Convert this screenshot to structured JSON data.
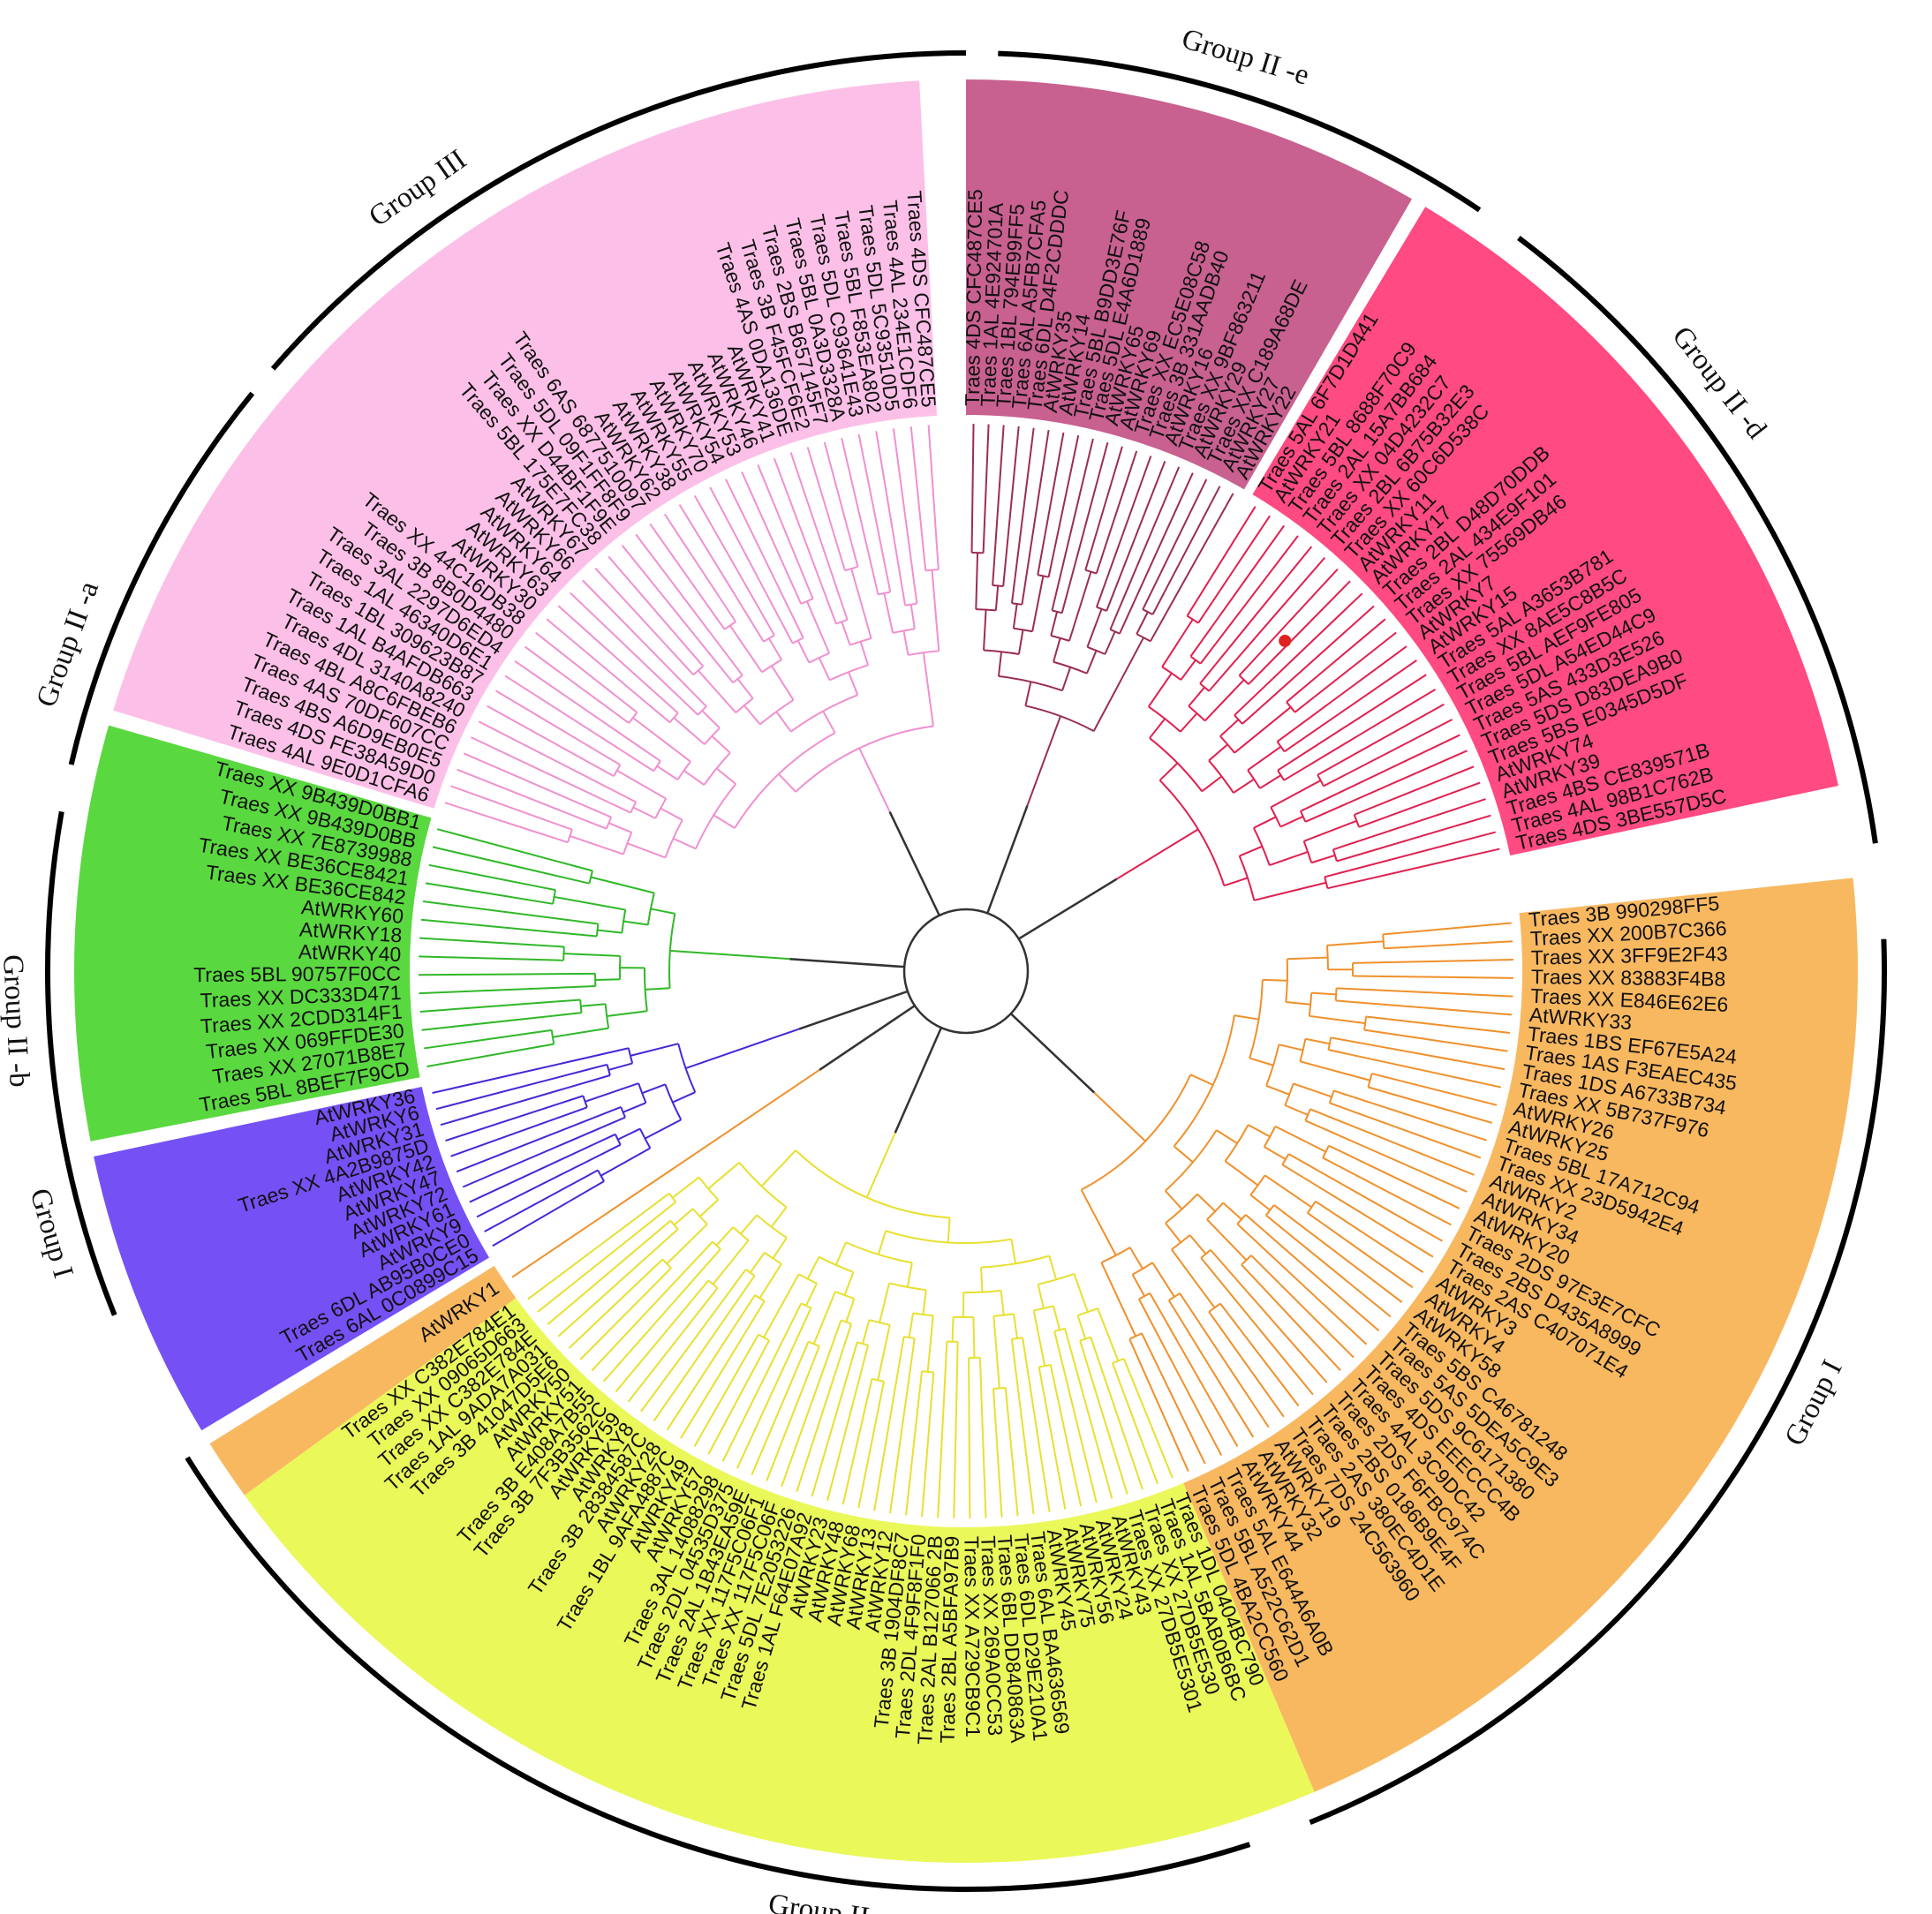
{
  "tree": {
    "groups": [
      {
        "id": "II-e",
        "label": "Group II -e",
        "color": "#c86090",
        "branch": "#9a2e52",
        "leaves": [
          "Traes 4DS CFC487CE5",
          "Traes 1AL 4E924701A",
          "Traes 1BL 794E99FF5",
          "Traes 6AL A5FB7CFA5",
          "Traes 6DL D4F2CDDDC",
          "AtWRKY35",
          "AtWRKY14",
          "Traes 5BL B9DD3E76F",
          "Traes 5DL E4A6D1889",
          "AtWRKY65",
          "AtWRKY69",
          "Traes XX EC5E08C58",
          "Traes 3B 331AADB40",
          "AtWRKY16",
          "Traes XX 9BF863211",
          "AtWRKY29",
          "Traes XX C189A68DE",
          "AtWRKY27",
          "AtWRKY22"
        ]
      },
      {
        "id": "II-d",
        "label": "Group II -d",
        "color": "#ff4a82",
        "branch": "#e02050",
        "leaves": [
          "Traes 5AL 6F7D1D441",
          "AtWRKY21",
          "Traes 5BL 8688F70C9",
          "Traes 2AL 15A7BB684",
          "Traes XX 04D4232C7",
          "Traes 2BL 6B75B32E3",
          "Traes XX 60C6D538C",
          "AtWRKY11",
          "AtWRKY17",
          "Traes 2BL D48D70DDB",
          "Traes 2AL 434E9F101",
          "Traes XX 75569DB46",
          "AtWRKY7",
          "AtWRKY15",
          "Traes 5AL A3653B781",
          "Traes XX 8AE5C8B5C",
          "Traes 5BL AEF9FE805",
          "Traes 5DL A54ED44C9",
          "Traes 5AS 433D3E526",
          "Traes 5DS D83DEA9B0",
          "Traes 5BS E0345D5DF",
          "AtWRKY74",
          "AtWRKY39",
          "Traes 4BS CE839571B",
          "Traes 4AL 98B1C762B",
          "Traes 4DS 3BE557D5C"
        ]
      },
      {
        "id": "I",
        "label": "Group I",
        "color": "#f8b860",
        "branch": "#f0902a",
        "leaves": [
          "Traes 3B 990298FF5",
          "Traes XX 200B7C366",
          "Traes XX 3FF9E2F43",
          "Traes XX 83883F4B8",
          "Traes XX E846E62E6",
          "AtWRKY33",
          "Traes 1BS EF67E5A24",
          "Traes 1AS F3EAEC435",
          "Traes 1DS A6733B734",
          "Traes XX 5B737F976",
          "AtWRKY26",
          "AtWRKY25",
          "Traes 5BL 17A712C94",
          "Traes XX 23D5942E4",
          "AtWRKY2",
          "AtWRKY34",
          "AtWRKY20",
          "Traes 2DS 97E3E7CFC",
          "Traes 2BS D435A8999",
          "Traes 2AS C407071E4",
          "AtWRKY3",
          "AtWRKY4",
          "AtWRKY58",
          "Traes 5BS C46781248",
          "Traes 5AS 5DEA5C9E3",
          "Traes 5DS 9C6171380",
          "Traes 4DS EEECCC4B",
          "Traes 4AL 3C9DC42",
          "Traes 2DS F6FBC974C",
          "Traes 2BS 0186B9E4F",
          "Traes 2AS 380EC4D1E",
          "Traes 7DS 24C563960",
          "AtWRKY19",
          "AtWRKY32",
          "AtWRKY44",
          "Traes 5AL E644A6A0B",
          "Traes 5BL A522C62D1",
          "Traes 5DL 4BA2CC560"
        ]
      },
      {
        "id": "II-c",
        "label": "Group II -c",
        "color": "#eaf85a",
        "branch": "#e8e030",
        "leaves": [
          "Traes 1DL 0404BC790",
          "Traes 1AL 5BAB0B6BC",
          "Traes XX 27DB5E530",
          "Traes XX 27DB5E5301",
          "AtWRKY43",
          "AtWRKY24",
          "AtWRKY56",
          "AtWRKY75",
          "AtWRKY45",
          "Traes 6AL BA4636569",
          "Traes 6DL D29E210A1",
          "Traes 6BL DD840863A",
          "Traes XX 269A0CC53",
          "Traes XX A729CB9C1",
          "Traes 2BL A5BFA97B9",
          "Traes 2AL B127066 2B",
          "Traes 2DL 4F9F8F1F0",
          "Traes 3B 1904DF8C7",
          "AtWRKY12",
          "AtWRKY13",
          "AtWRKY68",
          "AtWRKY48",
          "AtWRKY23",
          "Traes 1AL F64E07A92",
          "Traes 5DL 7E2053226",
          "Traes XX 117F5C06F",
          "Traes XX 117F5C06F1",
          "Traes 2AL 1B43EA59E",
          "Traes 2DL 04535D375",
          "Traes 3AL 14088298",
          "AtWRKY57",
          "AtWRKY49",
          "Traes 1BL 9AFA4887C",
          "AtWRKY28",
          "Traes 3B 28384587C",
          "AtWRKY8",
          "AtWRKY59",
          "Traes 3B 7F3B3562C",
          "Traes 3B E408A7B55",
          "AtWRKY51",
          "AtWRKY50",
          "Traes 3B 41047D5E6",
          "Traes 1AL 9ADA7A031",
          "Traes XX C382E784E",
          "Traes XX 09065D663",
          "Traes XX C382E784E1"
        ]
      },
      {
        "id": "I-s",
        "label": "Group I",
        "color": "#f8b860",
        "branch": "#f0902a",
        "leaves": [
          "AtWRKY1"
        ]
      },
      {
        "id": "II-b",
        "label": "Group II -b",
        "color": "#7550f5",
        "branch": "#4428d8",
        "leaves": [
          "Traes 6AL 0C0899C15",
          "Traes 6DL AB95B0CE0",
          "AtWRKY9",
          "AtWRKY61",
          "AtWRKY72",
          "AtWRKY47",
          "AtWRKY42",
          "Traes XX 4A2B9875D",
          "AtWRKY31",
          "AtWRKY6",
          "AtWRKY36"
        ]
      },
      {
        "id": "II-a",
        "label": "Group II -a",
        "color": "#5ad840",
        "branch": "#30b828",
        "leaves": [
          "Traes 5BL 8BEF7F9CD",
          "Traes XX 27071B8E7",
          "Traes XX 069FFDE30",
          "Traes XX 2CDD314F1",
          "Traes XX DC333D471",
          "Traes 5BL 90757F0CC",
          "AtWRKY40",
          "AtWRKY18",
          "AtWRKY60",
          "Traes XX BE36CE842",
          "Traes XX BE36CE8421",
          "Traes XX 7E8739988",
          "Traes XX 9B439D0BB",
          "Traes XX 9B439D0BB1"
        ]
      },
      {
        "id": "III",
        "label": "Group III",
        "color": "#fcc0e8",
        "branch": "#f090d0",
        "leaves": [
          "Traes 4AL 9E0D1CFA6",
          "Traes 4DS FE38A59D0",
          "Traes 4BS A6D9EB0E5",
          "Traes 4AS 70DF607CC",
          "Traes 4BL A8C6FBEB6",
          "Traes 4DL 3140A8240",
          "Traes 1AL B4AFDB663",
          "Traes 1BL 309623B87",
          "Traes 1AL 46340D6E1",
          "Traes 3AL 2297D6ED4",
          "Traes 3B 8B0D4480",
          "Traes XX 44C16DB38",
          "AtWRKY30",
          "AtWRKY63",
          "AtWRKY64",
          "AtWRKY66",
          "AtWRKY67",
          "Traes 5BL 175E7FC38",
          "Traes XX D44BF1F9E",
          "Traes 5DL 09F1FF8F9",
          "Traes 6AS 6877510097",
          "AtWRKY62",
          "AtWRKY38",
          "AtWRKY55",
          "AtWRKY70",
          "AtWRKY54",
          "AtWRKY53",
          "AtWRKY46",
          "AtWRKY41",
          "Traes 4AS 0DA136DE",
          "Traes 3B F45FCF6E2",
          "Traes 2BS B657145F7",
          "Traes 5BL 0A3D3328A",
          "Traes 5DL C93641E43",
          "Traes 5BL F853EA802",
          "Traes 5DL 5C93510D5",
          "Traes 4AL 234E1CDF6",
          "Traes 4DS CFC487CE5"
        ]
      }
    ],
    "marker_color": "#e02020"
  }
}
